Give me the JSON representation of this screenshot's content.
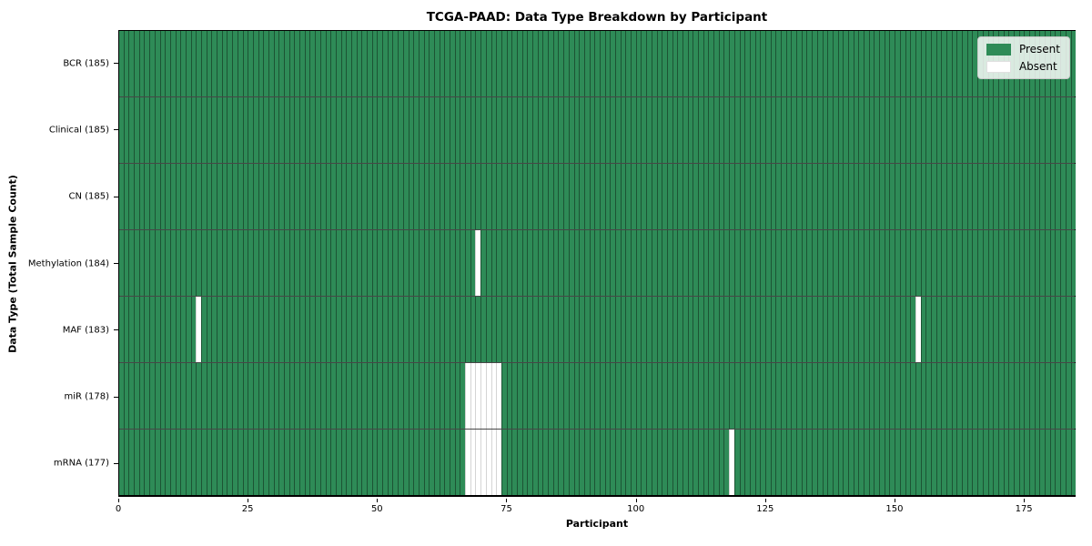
{
  "chart_data": {
    "type": "heatmap",
    "title": "TCGA-PAAD: Data Type Breakdown by Participant",
    "xlabel": "Participant",
    "ylabel": "Data Type (Total Sample Count)",
    "n_participants": 185,
    "xlim": [
      0,
      185
    ],
    "x_ticks": [
      0,
      25,
      50,
      75,
      100,
      125,
      150,
      175
    ],
    "grid": false,
    "legend": {
      "position": "upper right",
      "entries": [
        {
          "label": "Present",
          "key": "present",
          "color": "#2e8b57"
        },
        {
          "label": "Absent",
          "key": "absent",
          "color": "#ffffff"
        }
      ]
    },
    "rows": [
      {
        "data_type": "BCR",
        "total_samples": 185,
        "label": "BCR (185)",
        "absent_participants": []
      },
      {
        "data_type": "Clinical",
        "total_samples": 185,
        "label": "Clinical (185)",
        "absent_participants": []
      },
      {
        "data_type": "CN",
        "total_samples": 185,
        "label": "CN (185)",
        "absent_participants": []
      },
      {
        "data_type": "Methylation",
        "total_samples": 184,
        "label": "Methylation (184)",
        "absent_participants": [
          69
        ]
      },
      {
        "data_type": "MAF",
        "total_samples": 183,
        "label": "MAF (183)",
        "absent_participants": [
          15,
          154
        ]
      },
      {
        "data_type": "miR",
        "total_samples": 178,
        "label": "miR (178)",
        "absent_participants": [
          67,
          68,
          69,
          70,
          71,
          72,
          73
        ]
      },
      {
        "data_type": "mRNA",
        "total_samples": 177,
        "label": "mRNA (177)",
        "absent_participants": [
          67,
          68,
          69,
          70,
          71,
          72,
          73,
          118
        ]
      }
    ],
    "colors": {
      "present": "#2e8b57",
      "absent": "#ffffff",
      "present_edge": "#1c5434",
      "absent_edge": "#d4d4d4",
      "row_divider": "#1a1a1a",
      "axis": "#000000"
    }
  }
}
